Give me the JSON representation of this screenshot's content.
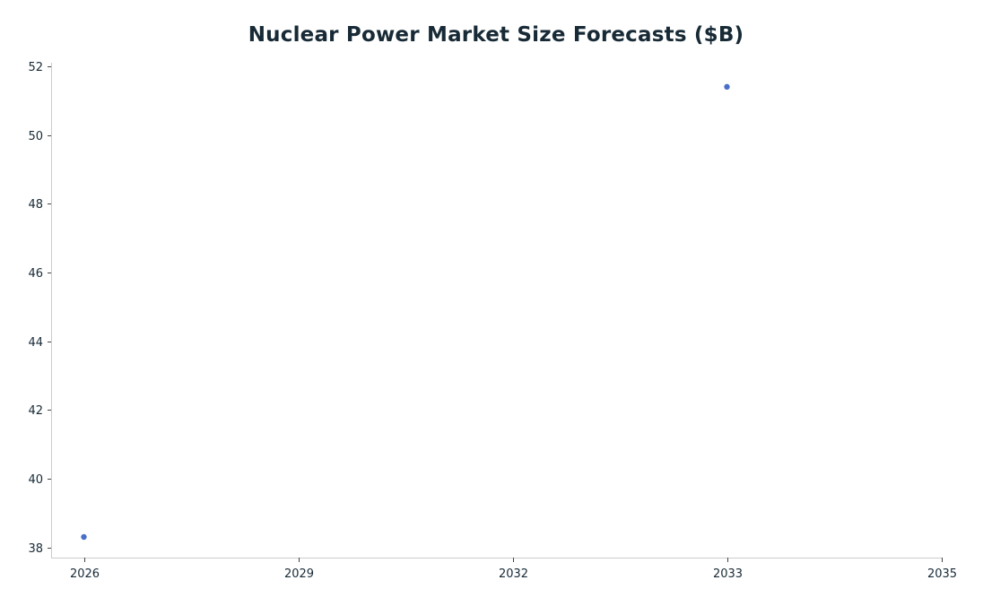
{
  "chart_data": {
    "type": "scatter",
    "title": "Nuclear Power Market Size Forecasts ($B)",
    "xlabel": "",
    "ylabel": "",
    "x_ticks": [
      2026,
      2029,
      2032,
      2033,
      2035
    ],
    "y_ticks": [
      38,
      40,
      42,
      44,
      46,
      48,
      50,
      52
    ],
    "ylim": [
      37.7,
      52.1
    ],
    "grid": false,
    "series": [
      {
        "color": "#4a6fc8",
        "points": [
          {
            "x": 2026,
            "y": 38.3
          },
          {
            "x": 2033,
            "y": 51.4
          }
        ]
      }
    ],
    "axis_color": "#cccccc",
    "text_color": "#172a36"
  }
}
